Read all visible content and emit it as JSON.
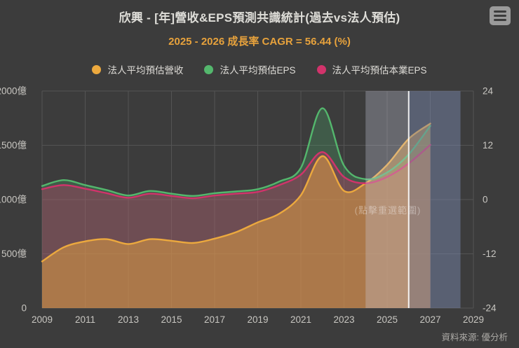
{
  "header": {
    "title": "欣興 - [年]營收&EPS預測共識統計(過去vs法人預估)",
    "subtitle": "2025 - 2026 成長率 CAGR = 56.44 (%)"
  },
  "legend": [
    {
      "label": "法人平均預估營收",
      "color": "#eca93e"
    },
    {
      "label": "法人平均預估EPS",
      "color": "#54b76d"
    },
    {
      "label": "法人平均預估本業EPS",
      "color": "#d2336b"
    }
  ],
  "chart_data": {
    "type": "line",
    "title": "欣興 - [年]營收&EPS預測共識統計(過去vs法人預估)",
    "subtitle": "2025 - 2026 成長率 CAGR = 56.44 (%)",
    "x": [
      2009,
      2010,
      2011,
      2012,
      2013,
      2014,
      2015,
      2016,
      2017,
      2018,
      2019,
      2020,
      2021,
      2022,
      2023,
      2024,
      2025,
      2026,
      2027
    ],
    "series": [
      {
        "id": "revenue",
        "name": "法人平均預估營收",
        "axis": "left",
        "unit": "億",
        "color": "#eca93e",
        "fill": "rgba(232,164,66,0.5)",
        "values": [
          430,
          560,
          615,
          635,
          590,
          635,
          620,
          600,
          640,
          700,
          790,
          870,
          1040,
          1400,
          1080,
          1150,
          1320,
          1560,
          1700
        ]
      },
      {
        "id": "eps",
        "name": "法人平均預估EPS",
        "axis": "right",
        "unit": "元",
        "color": "#54b76d",
        "fill": "rgba(77,184,112,0.25)",
        "values": [
          3.0,
          4.3,
          3.2,
          2.1,
          0.9,
          1.9,
          1.3,
          0.8,
          1.4,
          1.8,
          2.3,
          4.0,
          7.0,
          20.2,
          7.5,
          4.5,
          6.0,
          10.0,
          16.3
        ]
      },
      {
        "id": "core-eps",
        "name": "法人平均預估本業EPS",
        "axis": "right",
        "unit": "元",
        "color": "#d2336b",
        "fill": "rgba(208,51,106,0.32)",
        "values": [
          2.3,
          3.2,
          2.4,
          1.4,
          0.4,
          1.3,
          0.8,
          0.3,
          0.9,
          1.3,
          1.7,
          3.2,
          5.5,
          10.5,
          5.0,
          3.6,
          5.0,
          8.0,
          12.1
        ]
      }
    ],
    "left_axis": {
      "ticks": [
        2000,
        1500,
        1000,
        500,
        0
      ],
      "tick_labels": [
        "2000億",
        "1500億",
        "1000億",
        "500億",
        "0"
      ],
      "range": [
        0,
        2000
      ]
    },
    "right_axis": {
      "ticks": [
        24,
        12,
        0,
        -12,
        -24
      ],
      "range": [
        -24,
        24
      ]
    },
    "x_axis": {
      "tick_labels": [
        "2009",
        "2011",
        "2013",
        "2015",
        "2017",
        "2019",
        "2021",
        "2023",
        "2025",
        "2027",
        "2029"
      ],
      "range": [
        2009,
        2029
      ]
    },
    "forecast_region": {
      "start": 2024,
      "split": 2026,
      "end": 2028.4,
      "marker": 2026,
      "left_fill": "rgba(205,210,228,0.3)",
      "right_fill": "rgba(125,140,180,0.45)",
      "marker_color": "rgba(255,255,255,0.9)"
    },
    "grid": true,
    "legend_position": "top",
    "hint_text": "(點擊重選範圍)"
  },
  "footer": {
    "source": "資料來源: 優分析"
  }
}
